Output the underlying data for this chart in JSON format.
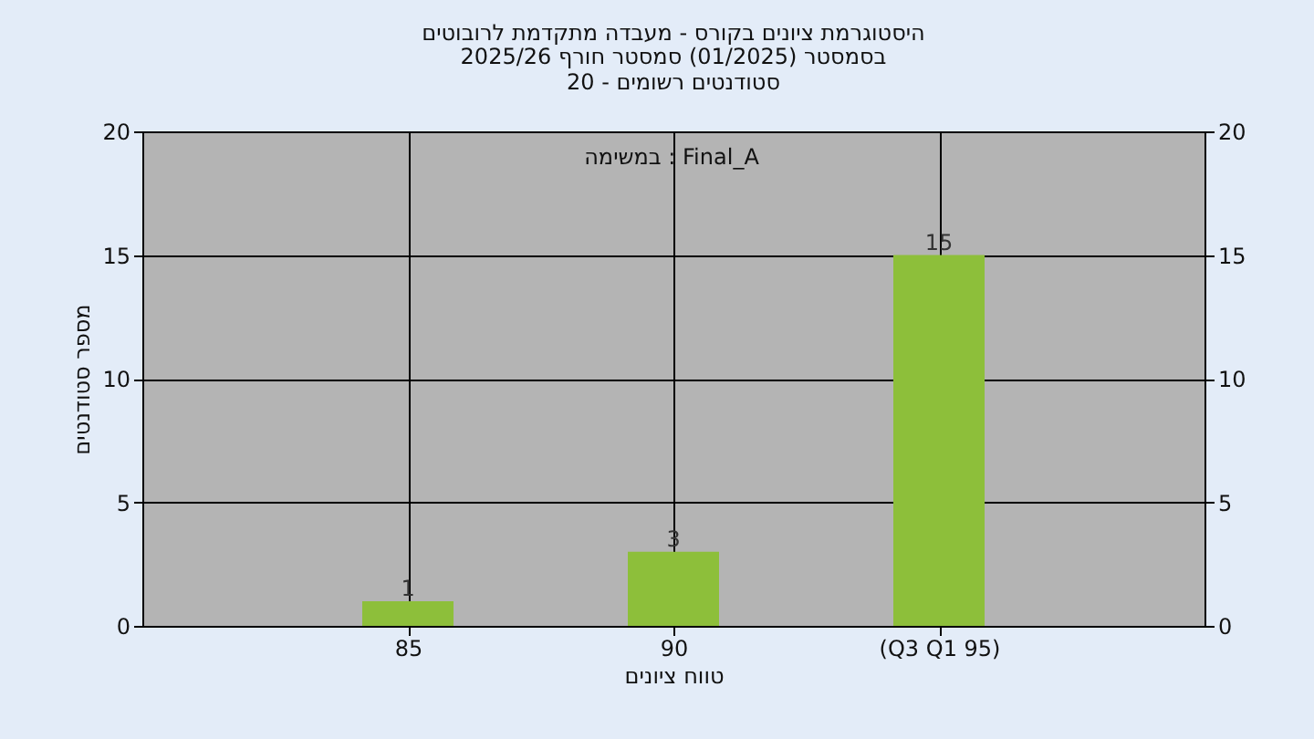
{
  "chart_data": {
    "type": "bar",
    "title": "היסטוגרמת ציונים בקורס - מעבדה מתקדמת לרובוטים",
    "subtitle": "בסמסטר  (01/2025)  סמסטר חורף 2025/26\nסטודנטים רשומים - 20",
    "annotations": [
      "במשימה : Final_A"
    ],
    "xlabel": "טווח ציונים",
    "ylabel": "מספר סטודנטים",
    "categories": [
      "85",
      "90",
      "(Q3 Q1 95)"
    ],
    "values": [
      1,
      3,
      15
    ],
    "color": "#8dbf3a",
    "ylim": [
      0,
      20
    ],
    "yticks": [
      0,
      5,
      10,
      15,
      20
    ],
    "y2lim": [
      0,
      20
    ],
    "y2ticks": [
      0,
      5,
      10,
      15,
      20
    ],
    "grid": true,
    "data_labels": true
  }
}
